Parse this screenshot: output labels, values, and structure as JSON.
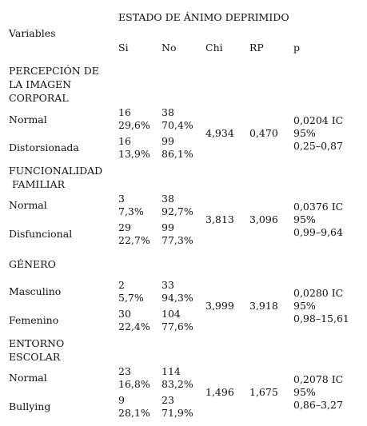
{
  "header": {
    "super_title": "ESTADO DE ÁNIMO DEPRIMIDO",
    "variables": "Variables",
    "cols": [
      "Si",
      "No",
      "Chi",
      "RP",
      "p"
    ]
  },
  "groups": [
    {
      "title_lines": [
        "PERCEPCIÓN DE",
        "LA IMAGEN",
        "CORPORAL"
      ],
      "rows": [
        {
          "label": "Normal",
          "si_n": "16",
          "si_pct": "29,6%",
          "no_n": "38",
          "no_pct": "70,4%"
        },
        {
          "label": "Distorsionada",
          "si_n": "16",
          "si_pct": "13,9%",
          "no_n": "99",
          "no_pct": "86,1%"
        }
      ],
      "chi": "4,934",
      "rp": "0,470",
      "p_lines": [
        "0,0204 IC",
        "95%",
        "0,25–0,87"
      ]
    },
    {
      "title_lines": [
        "FUNCIONALIDAD",
        " FAMILIAR"
      ],
      "rows": [
        {
          "label": "Normal",
          "si_n": "3",
          "si_pct": "7,3%",
          "no_n": "38",
          "no_pct": "92,7%"
        },
        {
          "label": "Disfuncional",
          "si_n": "29",
          "si_pct": "22,7%",
          "no_n": "99",
          "no_pct": "77,3%"
        }
      ],
      "chi": "3,813",
      "rp": "3,096",
      "p_lines": [
        "0,0376 IC",
        "95%",
        "0,99–9,64"
      ]
    },
    {
      "title_lines": [
        "GÉNERO"
      ],
      "rows": [
        {
          "label": "Masculino",
          "si_n": "2",
          "si_pct": "5,7%",
          "no_n": "33",
          "no_pct": "94,3%"
        },
        {
          "label": "Femenino",
          "si_n": "30",
          "si_pct": "22,4%",
          "no_n": "104",
          "no_pct": "77,6%"
        }
      ],
      "chi": "3,999",
      "rp": "3,918",
      "p_lines": [
        "0,0280 IC",
        "95%",
        "0,98–15,61"
      ]
    },
    {
      "title_lines": [
        "ENTORNO",
        "ESCOLAR"
      ],
      "rows": [
        {
          "label": "Normal",
          "si_n": "23",
          "si_pct": "16,8%",
          "no_n": "114",
          "no_pct": "83,2%"
        },
        {
          "label": "Bullying",
          "si_n": "9",
          "si_pct": "28,1%",
          "no_n": "23",
          "no_pct": "71,9%"
        }
      ],
      "chi": "1,496",
      "rp": "1,675",
      "p_lines": [
        "0,2078 IC",
        "95%",
        "0,86–3,27"
      ]
    }
  ]
}
